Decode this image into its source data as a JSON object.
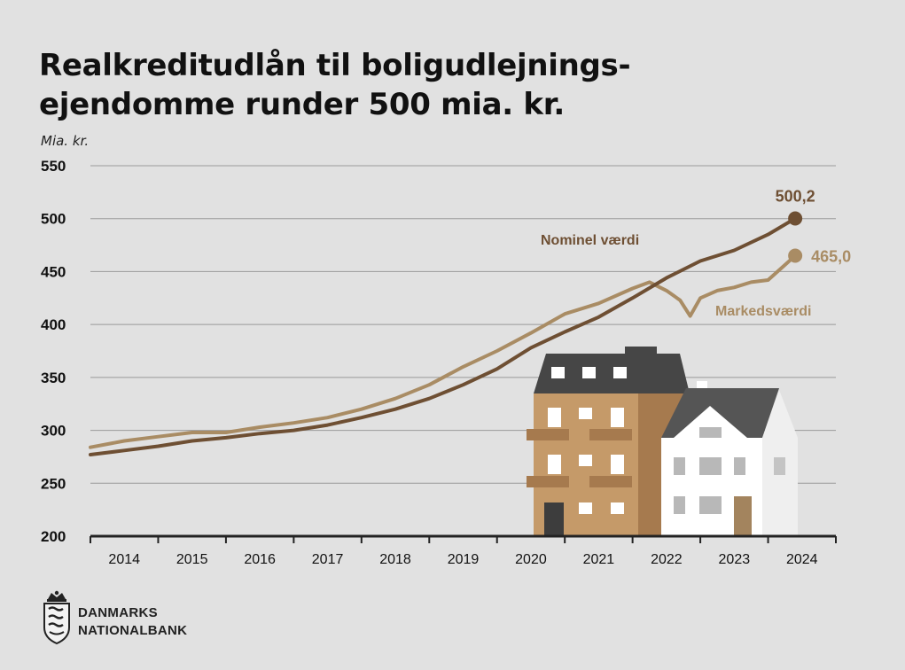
{
  "title_lines": [
    "Realkreditudlån til boligudlejnings-",
    "ejendomme runder 500 mia. kr."
  ],
  "unit_label": "Mia. kr.",
  "logo": {
    "line1": "DANMARKS",
    "line2": "NATIONALBANK",
    "icon": "crown-coat-of-arms-icon"
  },
  "colors": {
    "nominel": "#6e4f33",
    "markeds": "#a98c64",
    "grid": "#9a9a9a",
    "axis": "#222222"
  },
  "chart_data": {
    "type": "line",
    "title": "Realkreditudlån til boligudlejnings-ejendomme runder 500 mia. kr.",
    "ylabel": "Mia. kr.",
    "xlabel": "",
    "ylim": [
      200,
      550
    ],
    "yticks": [
      200,
      250,
      300,
      350,
      400,
      450,
      500,
      550
    ],
    "xlim": [
      2013.5,
      2024.5
    ],
    "xticks": [
      "2014",
      "2015",
      "2016",
      "2017",
      "2018",
      "2019",
      "2020",
      "2021",
      "2022",
      "2023",
      "2024"
    ],
    "grid": true,
    "series": [
      {
        "name": "Nominel værdi",
        "end_label": "500,2",
        "x": [
          2013.5,
          2014.0,
          2014.5,
          2015.0,
          2015.5,
          2016.0,
          2016.5,
          2017.0,
          2017.5,
          2018.0,
          2018.5,
          2019.0,
          2019.5,
          2020.0,
          2020.5,
          2021.0,
          2021.5,
          2022.0,
          2022.5,
          2023.0,
          2023.5,
          2023.9
        ],
        "values": [
          277,
          281,
          285,
          290,
          293,
          297,
          300,
          305,
          312,
          320,
          330,
          343,
          358,
          378,
          393,
          407,
          425,
          444,
          460,
          470,
          485,
          500.2
        ]
      },
      {
        "name": "Markedsværdi",
        "end_label": "465,0",
        "x": [
          2013.5,
          2014.0,
          2014.5,
          2015.0,
          2015.5,
          2016.0,
          2016.5,
          2017.0,
          2017.5,
          2018.0,
          2018.5,
          2019.0,
          2019.5,
          2020.0,
          2020.5,
          2021.0,
          2021.5,
          2021.75,
          2022.0,
          2022.2,
          2022.35,
          2022.5,
          2022.75,
          2023.0,
          2023.25,
          2023.5,
          2023.9
        ],
        "values": [
          284,
          290,
          294,
          298,
          298,
          303,
          307,
          312,
          320,
          330,
          343,
          360,
          375,
          392,
          410,
          420,
          434,
          440,
          432,
          423,
          408,
          425,
          432,
          435,
          440,
          442,
          465.0
        ]
      }
    ]
  }
}
